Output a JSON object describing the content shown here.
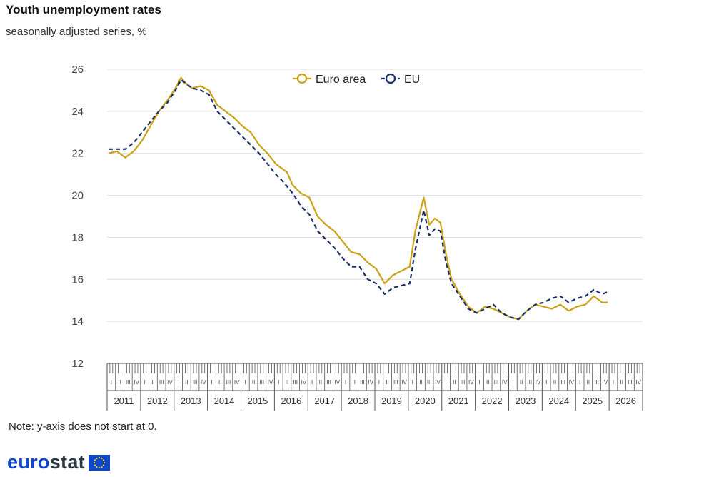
{
  "title": "Youth unemployment rates",
  "subtitle": "seasonally adjusted series, %",
  "note": "Note: y-axis does not start at 0.",
  "brand": {
    "wordmark_a": "euro",
    "wordmark_b": "stat"
  },
  "colors": {
    "euro_area": "#c9a21a",
    "eu": "#1b2f6b",
    "brand_blue": "#0e47cb",
    "brand_dark": "#2f3a45",
    "grid": "#dcdcdc"
  },
  "chart_data": {
    "type": "line",
    "title": "Youth unemployment rates",
    "subtitle": "seasonally adjusted series, %",
    "xlabel": "",
    "ylabel": "",
    "ylim": [
      12,
      26
    ],
    "yticks": [
      12,
      14,
      16,
      18,
      20,
      22,
      24,
      26
    ],
    "grid": true,
    "legend_position": "top-center",
    "years": [
      "2011",
      "2012",
      "2013",
      "2014",
      "2015",
      "2016",
      "2017",
      "2018",
      "2019",
      "2020",
      "2021",
      "2022",
      "2023",
      "2024",
      "2025",
      "2026"
    ],
    "quarter_labels": [
      "I",
      "II",
      "III",
      "IV"
    ],
    "series": [
      {
        "name": "Euro area",
        "color": "#c9a21a",
        "dash": "solid",
        "points": [
          [
            "2011-01",
            22.0
          ],
          [
            "2011-04",
            22.1
          ],
          [
            "2011-07",
            21.8
          ],
          [
            "2011-10",
            22.1
          ],
          [
            "2012-01",
            22.6
          ],
          [
            "2012-04",
            23.3
          ],
          [
            "2012-07",
            24.0
          ],
          [
            "2012-10",
            24.5
          ],
          [
            "2013-01",
            25.1
          ],
          [
            "2013-03",
            25.6
          ],
          [
            "2013-05",
            25.3
          ],
          [
            "2013-07",
            25.1
          ],
          [
            "2013-10",
            25.2
          ],
          [
            "2014-01",
            25.0
          ],
          [
            "2014-04",
            24.3
          ],
          [
            "2014-07",
            24.0
          ],
          [
            "2014-10",
            23.7
          ],
          [
            "2015-01",
            23.3
          ],
          [
            "2015-04",
            23.0
          ],
          [
            "2015-07",
            22.4
          ],
          [
            "2015-10",
            22.0
          ],
          [
            "2016-01",
            21.5
          ],
          [
            "2016-03",
            21.3
          ],
          [
            "2016-05",
            21.1
          ],
          [
            "2016-07",
            20.5
          ],
          [
            "2016-10",
            20.1
          ],
          [
            "2017-01",
            19.9
          ],
          [
            "2017-04",
            19.0
          ],
          [
            "2017-07",
            18.6
          ],
          [
            "2017-10",
            18.3
          ],
          [
            "2018-01",
            17.8
          ],
          [
            "2018-04",
            17.3
          ],
          [
            "2018-07",
            17.2
          ],
          [
            "2018-10",
            16.8
          ],
          [
            "2019-01",
            16.5
          ],
          [
            "2019-04",
            15.8
          ],
          [
            "2019-07",
            16.2
          ],
          [
            "2019-10",
            16.4
          ],
          [
            "2020-01",
            16.6
          ],
          [
            "2020-03",
            18.3
          ],
          [
            "2020-06",
            19.9
          ],
          [
            "2020-08",
            18.6
          ],
          [
            "2020-10",
            18.9
          ],
          [
            "2020-12",
            18.7
          ],
          [
            "2021-02",
            17.2
          ],
          [
            "2021-04",
            16.0
          ],
          [
            "2021-07",
            15.3
          ],
          [
            "2021-10",
            14.7
          ],
          [
            "2022-01",
            14.4
          ],
          [
            "2022-04",
            14.7
          ],
          [
            "2022-07",
            14.6
          ],
          [
            "2022-10",
            14.4
          ],
          [
            "2023-01",
            14.2
          ],
          [
            "2023-04",
            14.1
          ],
          [
            "2023-07",
            14.5
          ],
          [
            "2023-10",
            14.8
          ],
          [
            "2024-01",
            14.7
          ],
          [
            "2024-04",
            14.6
          ],
          [
            "2024-07",
            14.8
          ],
          [
            "2024-10",
            14.5
          ],
          [
            "2025-01",
            14.7
          ],
          [
            "2025-04",
            14.8
          ],
          [
            "2025-07",
            15.2
          ],
          [
            "2025-10",
            14.9
          ],
          [
            "2025-12",
            14.9
          ]
        ]
      },
      {
        "name": "EU",
        "color": "#1b2f6b",
        "dash": "dashed",
        "points": [
          [
            "2011-01",
            22.2
          ],
          [
            "2011-04",
            22.2
          ],
          [
            "2011-07",
            22.2
          ],
          [
            "2011-10",
            22.5
          ],
          [
            "2012-01",
            23.0
          ],
          [
            "2012-04",
            23.5
          ],
          [
            "2012-07",
            24.0
          ],
          [
            "2012-10",
            24.4
          ],
          [
            "2013-01",
            25.0
          ],
          [
            "2013-03",
            25.5
          ],
          [
            "2013-05",
            25.3
          ],
          [
            "2013-07",
            25.1
          ],
          [
            "2013-10",
            25.0
          ],
          [
            "2014-01",
            24.8
          ],
          [
            "2014-04",
            24.0
          ],
          [
            "2014-07",
            23.6
          ],
          [
            "2014-10",
            23.2
          ],
          [
            "2015-01",
            22.8
          ],
          [
            "2015-04",
            22.4
          ],
          [
            "2015-07",
            22.0
          ],
          [
            "2015-10",
            21.5
          ],
          [
            "2016-01",
            21.0
          ],
          [
            "2016-04",
            20.6
          ],
          [
            "2016-07",
            20.1
          ],
          [
            "2016-10",
            19.5
          ],
          [
            "2017-01",
            19.1
          ],
          [
            "2017-04",
            18.3
          ],
          [
            "2017-07",
            17.9
          ],
          [
            "2017-10",
            17.5
          ],
          [
            "2018-01",
            17.0
          ],
          [
            "2018-04",
            16.6
          ],
          [
            "2018-07",
            16.6
          ],
          [
            "2018-10",
            16.0
          ],
          [
            "2019-01",
            15.8
          ],
          [
            "2019-04",
            15.3
          ],
          [
            "2019-07",
            15.6
          ],
          [
            "2019-10",
            15.7
          ],
          [
            "2020-01",
            15.8
          ],
          [
            "2020-03",
            17.4
          ],
          [
            "2020-06",
            19.3
          ],
          [
            "2020-08",
            18.1
          ],
          [
            "2020-10",
            18.4
          ],
          [
            "2020-12",
            18.3
          ],
          [
            "2021-02",
            16.8
          ],
          [
            "2021-04",
            15.8
          ],
          [
            "2021-07",
            15.2
          ],
          [
            "2021-10",
            14.6
          ],
          [
            "2022-01",
            14.4
          ],
          [
            "2022-04",
            14.6
          ],
          [
            "2022-07",
            14.8
          ],
          [
            "2022-10",
            14.4
          ],
          [
            "2023-01",
            14.2
          ],
          [
            "2023-04",
            14.1
          ],
          [
            "2023-07",
            14.5
          ],
          [
            "2023-10",
            14.8
          ],
          [
            "2024-01",
            14.9
          ],
          [
            "2024-04",
            15.1
          ],
          [
            "2024-07",
            15.2
          ],
          [
            "2024-10",
            14.9
          ],
          [
            "2025-01",
            15.1
          ],
          [
            "2025-04",
            15.2
          ],
          [
            "2025-07",
            15.5
          ],
          [
            "2025-10",
            15.3
          ],
          [
            "2025-12",
            15.4
          ]
        ]
      }
    ]
  }
}
